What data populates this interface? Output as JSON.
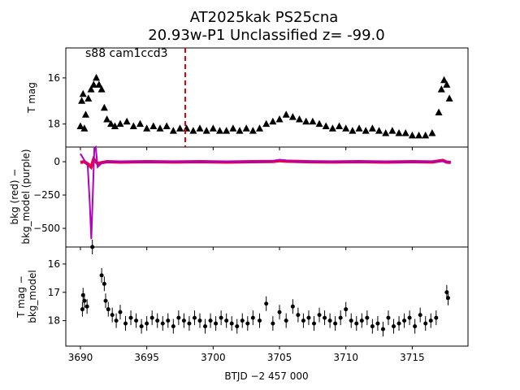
{
  "title_line1": "AT2025kak  PS25cna",
  "title_line2": "20.93w-P1 Unclassified z= -99.0",
  "annotation": "s88 cam1ccd3",
  "xlabel": "BTJD −2 457 000",
  "colors": {
    "lc": "#000000",
    "bkg": "#e8003a",
    "bkg_model": "#b000c0",
    "marker_line": "#e00000"
  },
  "chart_data": [
    {
      "type": "scatter",
      "panel": "top",
      "ylabel": "T mag",
      "xlim": [
        3688.9,
        3719.2
      ],
      "ylim": [
        19.0,
        14.7
      ],
      "inverted_y": true,
      "yticks": [
        16,
        18
      ],
      "vertical_line_x": 3697.9,
      "series": [
        {
          "values": [
            [
              3690.0,
              18.1
            ],
            [
              3690.1,
              17.0
            ],
            [
              3690.2,
              16.7
            ],
            [
              3690.3,
              18.2
            ],
            [
              3690.4,
              17.6
            ],
            [
              3690.6,
              16.9
            ],
            [
              3690.8,
              16.5
            ],
            [
              3691.0,
              16.3
            ],
            [
              3691.2,
              16.0
            ],
            [
              3691.4,
              16.3
            ],
            [
              3691.6,
              16.5
            ],
            [
              3691.8,
              17.3
            ],
            [
              3692.0,
              17.8
            ],
            [
              3692.3,
              18.0
            ],
            [
              3692.6,
              18.1
            ],
            [
              3693.0,
              18.0
            ],
            [
              3693.5,
              17.9
            ],
            [
              3694.0,
              18.1
            ],
            [
              3694.5,
              18.0
            ],
            [
              3695.0,
              18.2
            ],
            [
              3695.5,
              18.1
            ],
            [
              3696.0,
              18.2
            ],
            [
              3696.5,
              18.1
            ],
            [
              3697.0,
              18.3
            ],
            [
              3697.5,
              18.2
            ],
            [
              3698.0,
              18.2
            ],
            [
              3698.5,
              18.3
            ],
            [
              3699.0,
              18.2
            ],
            [
              3699.5,
              18.3
            ],
            [
              3700.0,
              18.2
            ],
            [
              3700.5,
              18.3
            ],
            [
              3701.0,
              18.3
            ],
            [
              3701.5,
              18.2
            ],
            [
              3702.0,
              18.3
            ],
            [
              3702.5,
              18.2
            ],
            [
              3703.0,
              18.3
            ],
            [
              3703.5,
              18.2
            ],
            [
              3704.0,
              18.0
            ],
            [
              3704.5,
              17.9
            ],
            [
              3705.0,
              17.8
            ],
            [
              3705.5,
              17.6
            ],
            [
              3706.0,
              17.7
            ],
            [
              3706.5,
              17.8
            ],
            [
              3707.0,
              17.9
            ],
            [
              3707.5,
              17.9
            ],
            [
              3708.0,
              18.0
            ],
            [
              3708.5,
              18.1
            ],
            [
              3709.0,
              18.2
            ],
            [
              3709.5,
              18.1
            ],
            [
              3710.0,
              18.2
            ],
            [
              3710.5,
              18.3
            ],
            [
              3711.0,
              18.2
            ],
            [
              3711.5,
              18.3
            ],
            [
              3712.0,
              18.2
            ],
            [
              3712.5,
              18.3
            ],
            [
              3713.0,
              18.4
            ],
            [
              3713.5,
              18.3
            ],
            [
              3714.0,
              18.4
            ],
            [
              3714.5,
              18.4
            ],
            [
              3715.0,
              18.5
            ],
            [
              3715.5,
              18.5
            ],
            [
              3716.0,
              18.5
            ],
            [
              3716.5,
              18.4
            ],
            [
              3717.0,
              17.5
            ],
            [
              3717.2,
              16.5
            ],
            [
              3717.4,
              16.1
            ],
            [
              3717.6,
              16.3
            ],
            [
              3717.8,
              16.9
            ]
          ]
        }
      ]
    },
    {
      "type": "line",
      "panel": "middle",
      "ylabel": "bkg (red) −\nbkg_model (purple)",
      "xlim": [
        3688.9,
        3719.2
      ],
      "ylim": [
        -640,
        110
      ],
      "yticks": [
        0,
        -250,
        -500
      ],
      "series": [
        {
          "values": [
            [
              3690.0,
              -5
            ],
            [
              3690.3,
              0
            ],
            [
              3690.6,
              -20
            ],
            [
              3690.8,
              -40
            ],
            [
              3691.0,
              20
            ],
            [
              3691.3,
              -15
            ],
            [
              3691.7,
              -5
            ],
            [
              3692.0,
              0
            ],
            [
              3693.0,
              -3
            ],
            [
              3695.0,
              0
            ],
            [
              3697.0,
              -2
            ],
            [
              3699.0,
              0
            ],
            [
              3701.0,
              -3
            ],
            [
              3703.0,
              0
            ],
            [
              3704.5,
              2
            ],
            [
              3705.0,
              8
            ],
            [
              3705.5,
              4
            ],
            [
              3707.0,
              0
            ],
            [
              3709.0,
              -2
            ],
            [
              3711.0,
              0
            ],
            [
              3713.0,
              -3
            ],
            [
              3715.0,
              0
            ],
            [
              3716.5,
              -2
            ],
            [
              3717.3,
              10
            ],
            [
              3717.6,
              -3
            ],
            [
              3717.9,
              -5
            ]
          ]
        },
        {
          "values": [
            [
              3690.0,
              60
            ],
            [
              3690.3,
              10
            ],
            [
              3690.55,
              -30
            ],
            [
              3690.7,
              -300
            ],
            [
              3690.82,
              -580
            ],
            [
              3690.95,
              -200
            ],
            [
              3691.05,
              100
            ],
            [
              3691.15,
              110
            ],
            [
              3691.3,
              -40
            ],
            [
              3691.6,
              -10
            ],
            [
              3692.0,
              -3
            ],
            [
              3693.0,
              0
            ],
            [
              3695.0,
              -2
            ],
            [
              3697.0,
              0
            ],
            [
              3699.0,
              -1
            ],
            [
              3701.0,
              0
            ],
            [
              3703.0,
              -2
            ],
            [
              3704.5,
              5
            ],
            [
              3705.0,
              15
            ],
            [
              3705.5,
              10
            ],
            [
              3706.0,
              3
            ],
            [
              3708.0,
              0
            ],
            [
              3710.0,
              -1
            ],
            [
              3712.0,
              0
            ],
            [
              3714.0,
              -2
            ],
            [
              3716.0,
              0
            ],
            [
              3717.0,
              5
            ],
            [
              3717.5,
              0
            ],
            [
              3717.9,
              -5
            ]
          ]
        }
      ]
    },
    {
      "type": "scatter",
      "panel": "bottom",
      "ylabel": "T mag −\nbkg_model",
      "xlim": [
        3688.9,
        3719.2
      ],
      "ylim": [
        18.9,
        15.4
      ],
      "inverted_y": true,
      "xticks": [
        3690,
        3695,
        3700,
        3705,
        3710,
        3715
      ],
      "yticks": [
        16,
        17,
        18
      ],
      "series": [
        {
          "values": [
            [
              3690.15,
              17.6
            ],
            [
              3690.2,
              17.1
            ],
            [
              3690.3,
              17.3
            ],
            [
              3690.5,
              17.5
            ],
            [
              3690.9,
              15.4
            ],
            [
              3691.6,
              16.4
            ],
            [
              3691.8,
              16.7
            ],
            [
              3691.9,
              17.3
            ],
            [
              3692.1,
              17.6
            ],
            [
              3692.4,
              17.8
            ],
            [
              3692.7,
              18.0
            ],
            [
              3693.0,
              17.7
            ],
            [
              3693.4,
              18.1
            ],
            [
              3693.8,
              17.9
            ],
            [
              3694.2,
              18.0
            ],
            [
              3694.6,
              18.2
            ],
            [
              3695.0,
              18.1
            ],
            [
              3695.4,
              17.9
            ],
            [
              3695.8,
              18.0
            ],
            [
              3696.2,
              18.1
            ],
            [
              3696.6,
              18.0
            ],
            [
              3697.0,
              18.2
            ],
            [
              3697.4,
              17.9
            ],
            [
              3697.8,
              18.0
            ],
            [
              3698.2,
              18.1
            ],
            [
              3698.6,
              17.9
            ],
            [
              3699.0,
              18.0
            ],
            [
              3699.4,
              18.2
            ],
            [
              3699.8,
              18.0
            ],
            [
              3700.2,
              18.1
            ],
            [
              3700.6,
              17.9
            ],
            [
              3701.0,
              18.0
            ],
            [
              3701.4,
              18.1
            ],
            [
              3701.8,
              18.2
            ],
            [
              3702.2,
              18.0
            ],
            [
              3702.6,
              18.1
            ],
            [
              3703.0,
              17.9
            ],
            [
              3703.5,
              18.0
            ],
            [
              3704.0,
              17.4
            ],
            [
              3704.5,
              18.1
            ],
            [
              3705.0,
              17.7
            ],
            [
              3705.5,
              18.0
            ],
            [
              3706.0,
              17.5
            ],
            [
              3706.4,
              17.8
            ],
            [
              3706.8,
              18.0
            ],
            [
              3707.2,
              17.9
            ],
            [
              3707.6,
              18.1
            ],
            [
              3708.0,
              17.8
            ],
            [
              3708.4,
              17.9
            ],
            [
              3708.8,
              18.0
            ],
            [
              3709.2,
              18.1
            ],
            [
              3709.6,
              17.9
            ],
            [
              3710.0,
              17.6
            ],
            [
              3710.4,
              18.0
            ],
            [
              3710.8,
              18.1
            ],
            [
              3711.2,
              18.0
            ],
            [
              3711.6,
              17.9
            ],
            [
              3712.0,
              18.2
            ],
            [
              3712.4,
              18.1
            ],
            [
              3712.8,
              18.3
            ],
            [
              3713.2,
              17.9
            ],
            [
              3713.6,
              18.2
            ],
            [
              3714.0,
              18.1
            ],
            [
              3714.4,
              18.0
            ],
            [
              3714.8,
              17.9
            ],
            [
              3715.2,
              18.2
            ],
            [
              3715.6,
              17.8
            ],
            [
              3716.0,
              18.1
            ],
            [
              3716.4,
              18.0
            ],
            [
              3716.8,
              17.9
            ],
            [
              3717.6,
              17.0
            ],
            [
              3717.7,
              17.2
            ]
          ]
        }
      ]
    }
  ]
}
